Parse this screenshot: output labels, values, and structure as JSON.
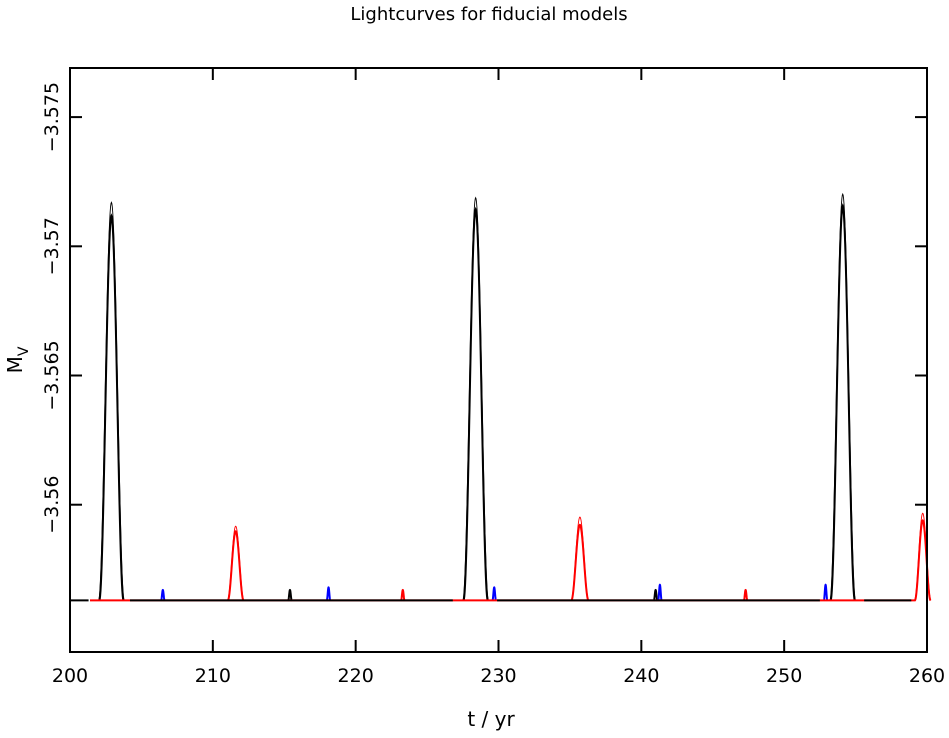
{
  "chart_data": {
    "type": "line",
    "title": "Lightcurves for fiducial models",
    "xlabel": "t / yr",
    "ylabel": {
      "main": "M",
      "sub": "V"
    },
    "xlim": [
      200,
      260
    ],
    "ylim": [
      -3.5543,
      -3.5769
    ],
    "y_inverted": true,
    "x_ticks": [
      200,
      210,
      220,
      230,
      240,
      250,
      260
    ],
    "x_tick_labels": [
      "200",
      "210",
      "220",
      "230",
      "240",
      "250",
      "260"
    ],
    "y_ticks": [
      -3.575,
      -3.57,
      -3.565,
      -3.56
    ],
    "y_tick_labels": [
      "−3.575",
      "−3.57",
      "−3.565",
      "−3.56"
    ],
    "grid": false,
    "baseline": -3.5563,
    "colors": {
      "black": "#000000",
      "red": "#ff0000",
      "blue": "#0000ff"
    },
    "series": [
      {
        "color": "#000000",
        "width": 2.0,
        "pulses": [
          {
            "t": 202.9,
            "peak": -3.57117,
            "w": 0.85
          },
          {
            "t": 228.4,
            "peak": -3.57142,
            "w": 0.85
          },
          {
            "t": 254.1,
            "peak": -3.57156,
            "w": 0.85
          },
          {
            "t": 215.4,
            "peak": -3.5567,
            "w": 0.12
          },
          {
            "t": 241.0,
            "peak": -3.5567,
            "w": 0.12
          }
        ]
      },
      {
        "color": "#000000",
        "width": 0.9,
        "pulses": [
          {
            "t": 202.9,
            "peak": -3.5717,
            "w": 0.9
          },
          {
            "t": 228.4,
            "peak": -3.57188,
            "w": 0.9
          },
          {
            "t": 254.1,
            "peak": -3.57202,
            "w": 0.9
          }
        ]
      },
      {
        "color": "#ff0000",
        "width": 2.0,
        "pulses": [
          {
            "t": 211.6,
            "peak": -3.55897,
            "w": 0.55
          },
          {
            "t": 235.7,
            "peak": -3.55922,
            "w": 0.6
          },
          {
            "t": 259.7,
            "peak": -3.55939,
            "w": 0.55
          },
          {
            "t": 223.3,
            "peak": -3.5567,
            "w": 0.12
          },
          {
            "t": 247.3,
            "peak": -3.5567,
            "w": 0.12
          }
        ]
      },
      {
        "color": "#ff0000",
        "width": 0.9,
        "pulses": [
          {
            "t": 211.6,
            "peak": -3.55917,
            "w": 0.58
          },
          {
            "t": 235.7,
            "peak": -3.55952,
            "w": 0.62
          },
          {
            "t": 259.7,
            "peak": -3.55967,
            "w": 0.58
          }
        ]
      },
      {
        "color": "#0000ff",
        "width": 2.0,
        "pulses": [
          {
            "t": 206.5,
            "peak": -3.5567,
            "w": 0.12
          },
          {
            "t": 218.1,
            "peak": -3.5568,
            "w": 0.12
          },
          {
            "t": 229.7,
            "peak": -3.5568,
            "w": 0.12
          },
          {
            "t": 241.3,
            "peak": -3.5569,
            "w": 0.12
          },
          {
            "t": 252.9,
            "peak": -3.5569,
            "w": 0.12
          }
        ]
      }
    ]
  }
}
